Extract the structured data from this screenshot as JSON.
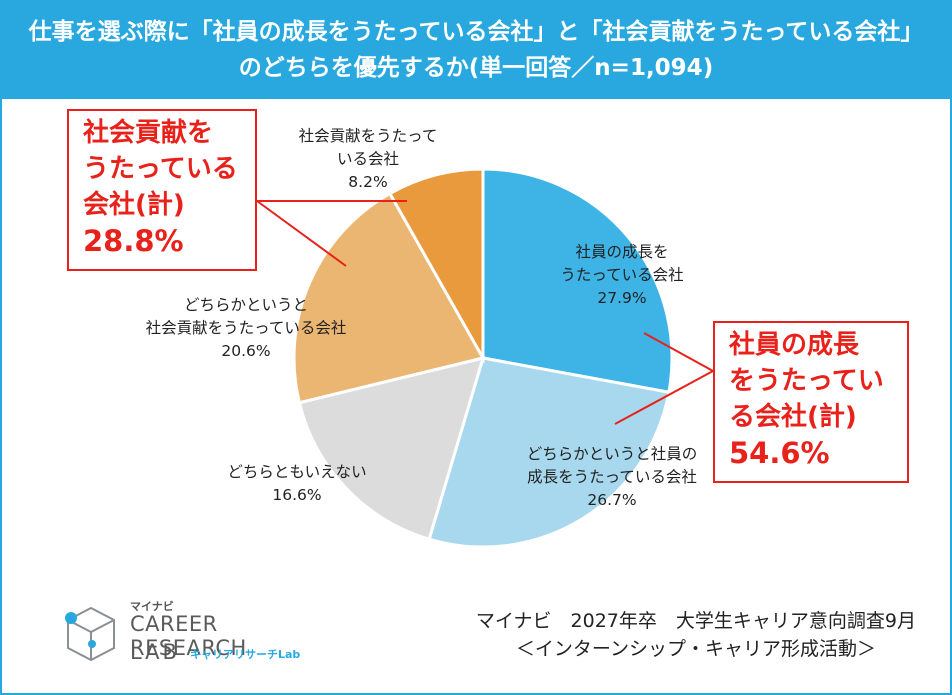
{
  "header": {
    "line1": "仕事を選ぶ際に「社員の成長をうたっている会社」と「社会貢献をうたっている会社」",
    "line2": "のどちらを優先するか(単一回答／n=1,094)"
  },
  "chart_data": {
    "type": "pie",
    "title": "仕事を選ぶ際に「社員の成長をうたっている会社」と「社会貢献をうたっている会社」のどちらを優先するか(単一回答／n=1,094)",
    "start": "12 o'clock, clockwise",
    "slices": [
      {
        "label_lines": [
          "社員の成長を",
          "うたっている会社"
        ],
        "value": 27.9,
        "value_text": "27.9%",
        "color": "#3db3e6"
      },
      {
        "label_lines": [
          "どちらかというと社員の",
          "成長をうたっている会社"
        ],
        "value": 26.7,
        "value_text": "26.7%",
        "color": "#a7d8ee"
      },
      {
        "label_lines": [
          "どちらともいえない"
        ],
        "value": 16.6,
        "value_text": "16.6%",
        "color": "#dcdcdc"
      },
      {
        "label_lines": [
          "どちらかというと",
          "社会貢献をうたっている会社"
        ],
        "value": 20.6,
        "value_text": "20.6%",
        "color": "#ebb572"
      },
      {
        "label_lines": [
          "社会貢献をうたって",
          "いる会社"
        ],
        "value": 8.2,
        "value_text": "8.2%",
        "color": "#e99a3c"
      }
    ]
  },
  "callouts": {
    "left": {
      "lines": [
        "社会貢献を",
        "うたっている",
        "会社(計)"
      ],
      "pct": "28.8%"
    },
    "right": {
      "lines": [
        "社員の成長",
        "をうたってい",
        "る会社(計)"
      ],
      "pct": "54.6%"
    }
  },
  "logo": {
    "brand": "マイナビ",
    "line1": "CAREER RESEARCH",
    "line2": "LAB",
    "sub": "キャリアリサーチLab"
  },
  "source": {
    "line1": "マイナビ　2027年卒　大学生キャリア意向調査9月",
    "line2": "＜インターンシップ・キャリア形成活動＞"
  },
  "colors": {
    "accent": "#29a8e0",
    "callout": "#e8221b"
  }
}
